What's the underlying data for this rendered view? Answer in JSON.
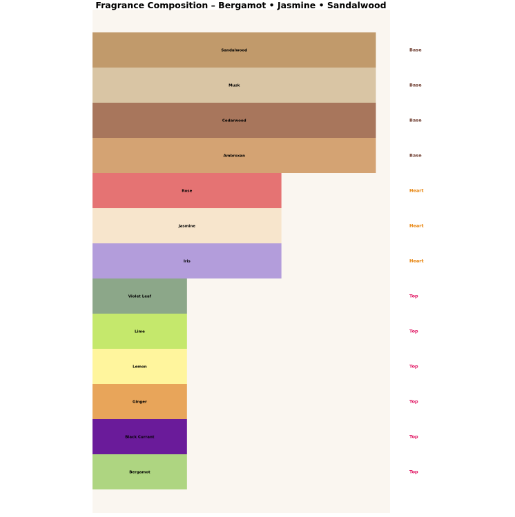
{
  "chart_data": {
    "type": "bar",
    "orientation": "horizontal",
    "title": "Fragrance Composition – Bergamot • Jasmine • Sandalwood",
    "xlabel": "",
    "ylabel": "",
    "xlim": [
      0,
      3.15
    ],
    "grid": false,
    "legend": "none",
    "bars": [
      {
        "name": "Sandalwood",
        "tier": "Base",
        "value": 3,
        "color": "#c19a6b"
      },
      {
        "name": "Musk",
        "tier": "Base",
        "value": 3,
        "color": "#d9c5a4"
      },
      {
        "name": "Cedarwood",
        "tier": "Base",
        "value": 3,
        "color": "#a8765c"
      },
      {
        "name": "Ambroxan",
        "tier": "Base",
        "value": 3,
        "color": "#d4a373"
      },
      {
        "name": "Rose",
        "tier": "Heart",
        "value": 2,
        "color": "#e57373"
      },
      {
        "name": "Jasmine",
        "tier": "Heart",
        "value": 2,
        "color": "#f7e5cc"
      },
      {
        "name": "Iris",
        "tier": "Heart",
        "value": 2,
        "color": "#b39ddb"
      },
      {
        "name": "Violet Leaf",
        "tier": "Top",
        "value": 1,
        "color": "#8ca789"
      },
      {
        "name": "Lime",
        "tier": "Top",
        "value": 1,
        "color": "#c5e86c"
      },
      {
        "name": "Lemon",
        "tier": "Top",
        "value": 1,
        "color": "#fff59d"
      },
      {
        "name": "Ginger",
        "tier": "Top",
        "value": 1,
        "color": "#e8a55a"
      },
      {
        "name": "Black Currant",
        "tier": "Top",
        "value": 1,
        "color": "#6a1b9a"
      },
      {
        "name": "Bergamot",
        "tier": "Top",
        "value": 1,
        "color": "#aed581"
      }
    ],
    "tier_colors": {
      "Base": "#6d3b2e",
      "Heart": "#e67e00",
      "Top": "#e0115f"
    },
    "background_color": "#faf6f0"
  }
}
